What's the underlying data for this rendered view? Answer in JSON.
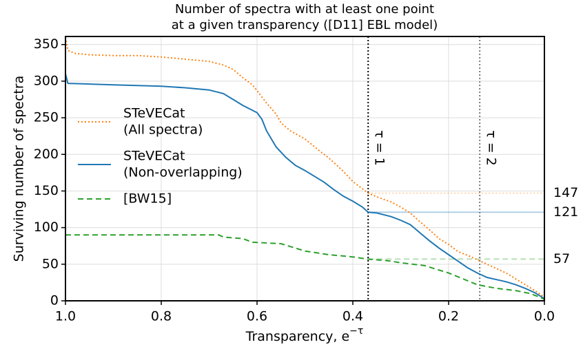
{
  "chart_data": {
    "type": "line",
    "title": [
      "Number of spectra with at least one point",
      "at a given transparency ([D11] EBL model)"
    ],
    "xlabel": [
      "Transparency, e",
      "−τ"
    ],
    "ylabel": "Surviving number of spectra",
    "xlim": [
      1,
      0
    ],
    "ylim": [
      0,
      361
    ],
    "xticks": [
      {
        "value": 1,
        "label": "1.0"
      },
      0.8,
      0.6,
      0.4,
      0.2,
      {
        "value": 0,
        "label": "0.0"
      }
    ],
    "yticks": [
      0,
      50,
      100,
      150,
      200,
      250,
      300,
      350
    ],
    "grid": true,
    "legend": "center left",
    "series": [
      {
        "name": [
          "STeVECat",
          "(All spectra)"
        ],
        "color": "#ff7f0e",
        "style": "dotted",
        "x": [
          1.0,
          0.995,
          0.98,
          0.95,
          0.9,
          0.85,
          0.8,
          0.75,
          0.7,
          0.67,
          0.65,
          0.63,
          0.61,
          0.6,
          0.58,
          0.56,
          0.55,
          0.53,
          0.5,
          0.47,
          0.45,
          0.42,
          0.4,
          0.38,
          0.368,
          0.35,
          0.32,
          0.3,
          0.28,
          0.26,
          0.24,
          0.22,
          0.2,
          0.18,
          0.16,
          0.14,
          0.12,
          0.1,
          0.08,
          0.06,
          0.04,
          0.02,
          0.0
        ],
        "values": [
          360,
          342,
          338,
          336,
          335,
          335,
          333,
          330,
          327,
          322,
          316,
          305,
          295,
          287,
          270,
          255,
          243,
          232,
          221,
          205,
          195,
          177,
          163,
          153,
          147,
          142,
          135,
          128,
          120,
          108,
          97,
          85,
          77,
          67,
          62,
          56,
          50,
          44,
          38,
          30,
          22,
          14,
          5
        ]
      },
      {
        "name": [
          "STeVECat",
          "(Non-overlapping)"
        ],
        "color": "#1f77b4",
        "style": "solid",
        "x": [
          1.0,
          0.995,
          0.95,
          0.9,
          0.85,
          0.8,
          0.75,
          0.7,
          0.67,
          0.65,
          0.63,
          0.6,
          0.59,
          0.58,
          0.56,
          0.54,
          0.52,
          0.5,
          0.48,
          0.46,
          0.44,
          0.42,
          0.4,
          0.38,
          0.368,
          0.35,
          0.32,
          0.3,
          0.28,
          0.26,
          0.24,
          0.22,
          0.2,
          0.18,
          0.16,
          0.14,
          0.12,
          0.1,
          0.08,
          0.06,
          0.04,
          0.02,
          0.0
        ],
        "values": [
          310,
          297,
          296,
          295,
          294,
          293,
          291,
          288,
          283,
          275,
          267,
          257,
          248,
          232,
          210,
          196,
          185,
          178,
          170,
          162,
          152,
          143,
          136,
          128,
          121,
          120,
          115,
          110,
          104,
          93,
          82,
          72,
          63,
          54,
          45,
          38,
          32,
          29,
          26,
          22,
          17,
          11,
          3
        ]
      },
      {
        "name": [
          "[BW15]"
        ],
        "color": "#2ca02c",
        "style": "dashed",
        "x": [
          1.0,
          0.68,
          0.67,
          0.63,
          0.61,
          0.55,
          0.52,
          0.5,
          0.45,
          0.4,
          0.37,
          0.33,
          0.3,
          0.25,
          0.2,
          0.17,
          0.14,
          0.1,
          0.06,
          0.03,
          0.01,
          0.0
        ],
        "values": [
          90,
          90,
          87,
          85,
          80,
          78,
          72,
          68,
          63,
          60,
          57,
          55,
          52,
          48,
          38,
          30,
          22,
          17,
          14,
          10,
          5,
          2
        ]
      }
    ],
    "vertical_lines": [
      {
        "x": 0.368,
        "label": "τ = 1",
        "color": "#000000"
      },
      {
        "x": 0.135,
        "label": "τ = 2",
        "color": "#777777"
      }
    ],
    "reference_lines": [
      {
        "value": 147,
        "color": "#ff7f0e"
      },
      {
        "value": 121,
        "color": "#1f77b4"
      },
      {
        "value": 57,
        "color": "#2ca02c"
      }
    ]
  }
}
